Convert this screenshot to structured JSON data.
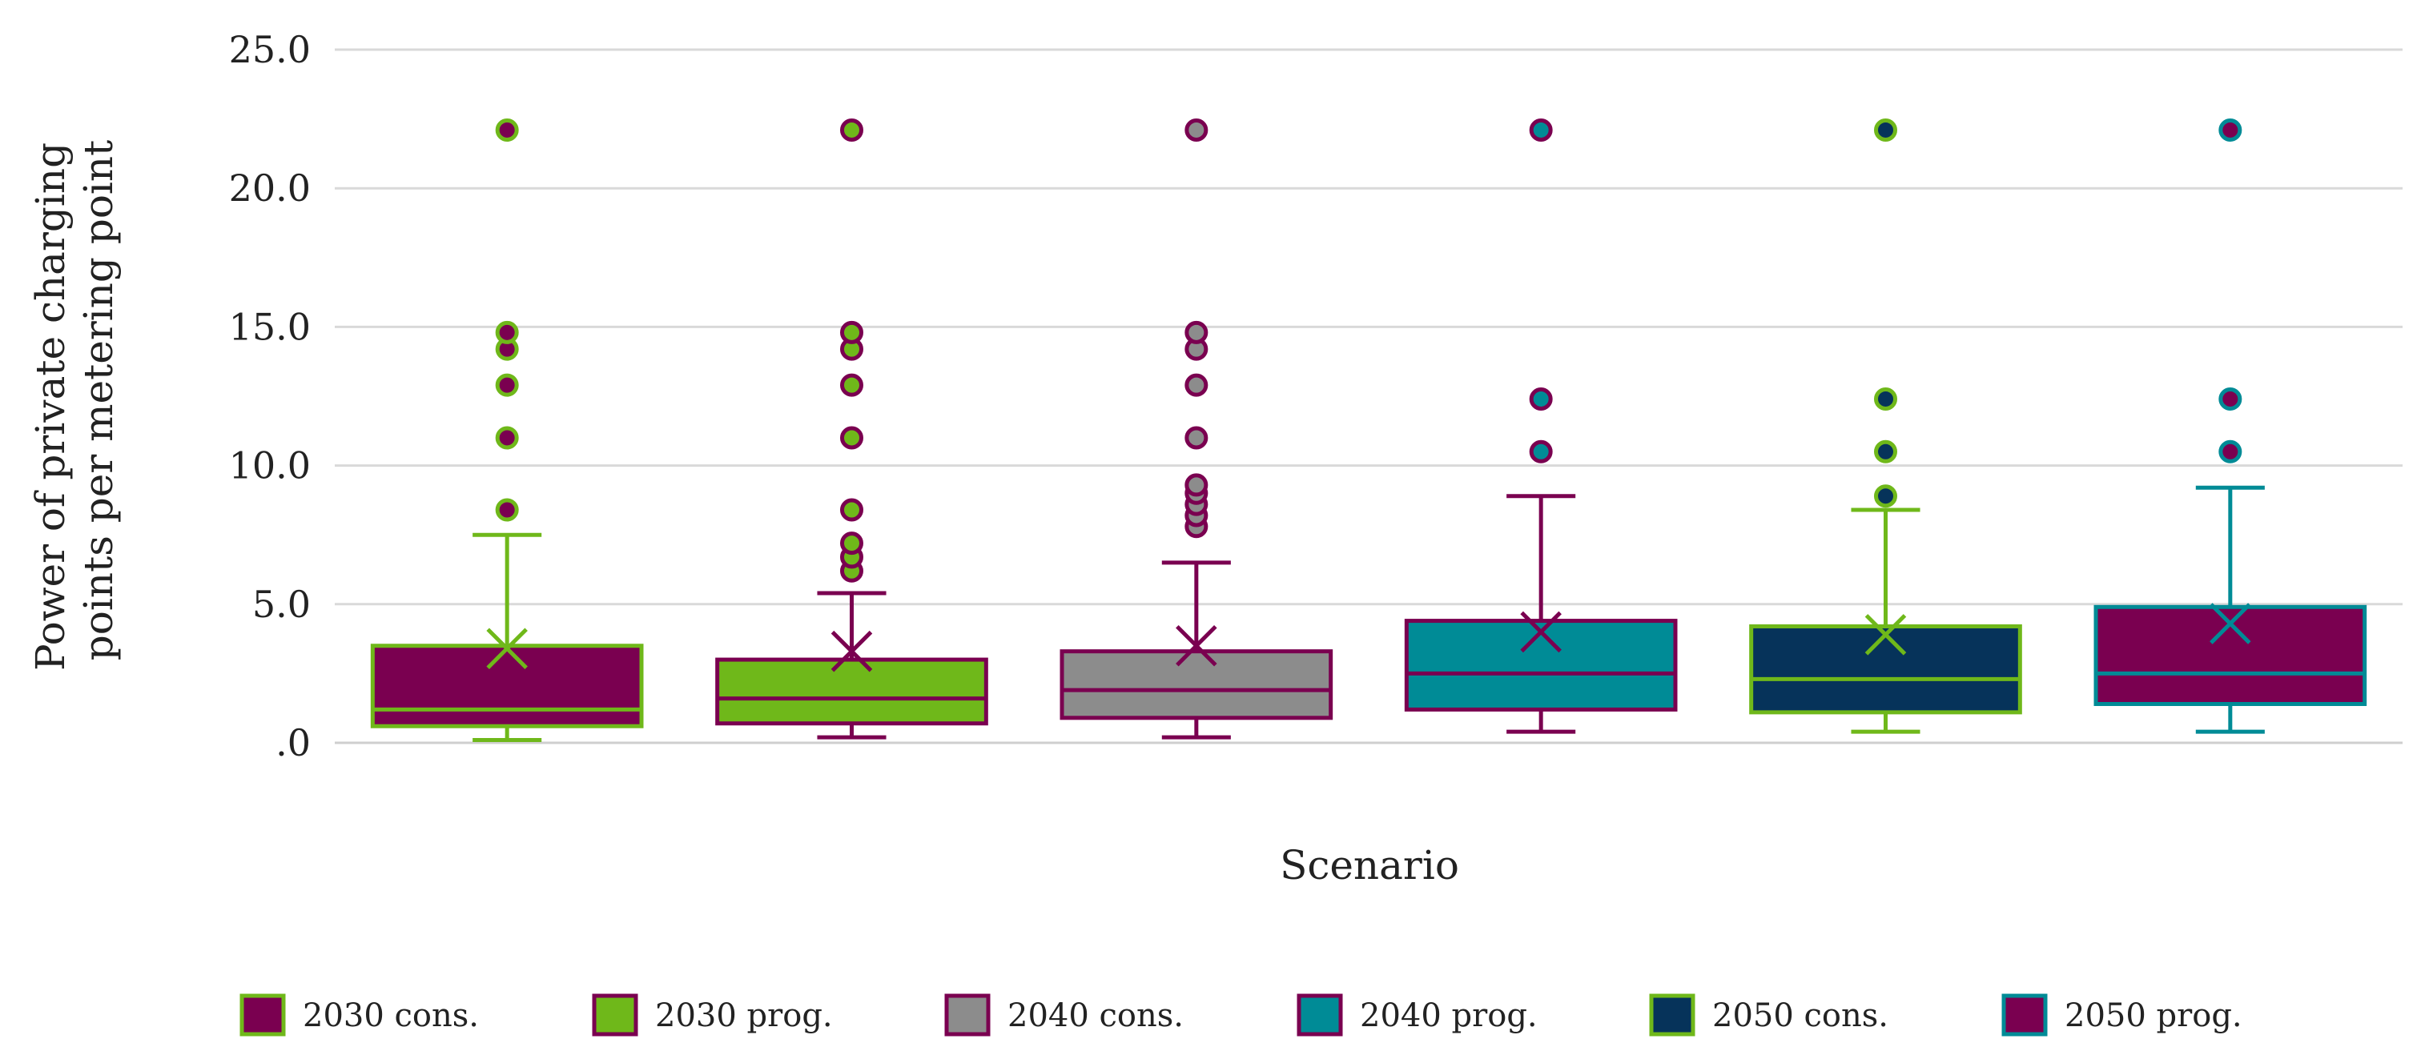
{
  "chart_data": {
    "type": "box",
    "xlabel": "Scenario",
    "ylabel": "Power of private charging points per metering point",
    "ylabel_lines": [
      "Power of private charging",
      "points per metering point"
    ],
    "ylim": [
      0,
      25
    ],
    "yticks": [
      0,
      5,
      10,
      15,
      20,
      25
    ],
    "ytick_labels": [
      ".0",
      "5.0",
      "10.0",
      "15.0",
      "20.0",
      "25.0"
    ],
    "grid": true,
    "legend_position": "bottom",
    "series": [
      {
        "name": "2030 cons.",
        "fill": "#7a0050",
        "edge": "#6fb81a",
        "whisker_low": 0.1,
        "q1": 0.6,
        "median": 1.2,
        "q3": 3.5,
        "whisker_high": 7.5,
        "mean": 3.4,
        "outliers": [
          8.4,
          11.0,
          12.9,
          14.2,
          14.8,
          22.1
        ]
      },
      {
        "name": "2030 prog.",
        "fill": "#6fb81a",
        "edge": "#7a0050",
        "whisker_low": 0.2,
        "q1": 0.7,
        "median": 1.6,
        "q3": 3.0,
        "whisker_high": 5.4,
        "mean": 3.3,
        "outliers": [
          6.2,
          6.7,
          7.2,
          8.4,
          11.0,
          12.9,
          14.2,
          14.8,
          22.1
        ]
      },
      {
        "name": "2040 cons.",
        "fill": "#8c8c8c",
        "edge": "#7a0050",
        "whisker_low": 0.2,
        "q1": 0.9,
        "median": 1.9,
        "q3": 3.3,
        "whisker_high": 6.5,
        "mean": 3.5,
        "outliers": [
          7.8,
          8.2,
          8.6,
          9.0,
          9.3,
          11.0,
          12.9,
          14.2,
          14.8,
          22.1
        ]
      },
      {
        "name": "2040 prog.",
        "fill": "#008b96",
        "edge": "#7a0050",
        "whisker_low": 0.4,
        "q1": 1.2,
        "median": 2.5,
        "q3": 4.4,
        "whisker_high": 8.9,
        "mean": 4.0,
        "outliers": [
          10.5,
          12.4,
          22.1
        ]
      },
      {
        "name": "2050 cons.",
        "fill": "#06335a",
        "edge": "#6fb81a",
        "whisker_low": 0.4,
        "q1": 1.1,
        "median": 2.3,
        "q3": 4.2,
        "whisker_high": 8.4,
        "mean": 3.9,
        "outliers": [
          8.9,
          10.5,
          12.4,
          22.1
        ]
      },
      {
        "name": "2050 prog.",
        "fill": "#7a0050",
        "edge": "#008b96",
        "whisker_low": 0.4,
        "q1": 1.4,
        "median": 2.5,
        "q3": 4.9,
        "whisker_high": 9.2,
        "mean": 4.3,
        "outliers": [
          10.5,
          12.4,
          22.1
        ]
      }
    ]
  }
}
